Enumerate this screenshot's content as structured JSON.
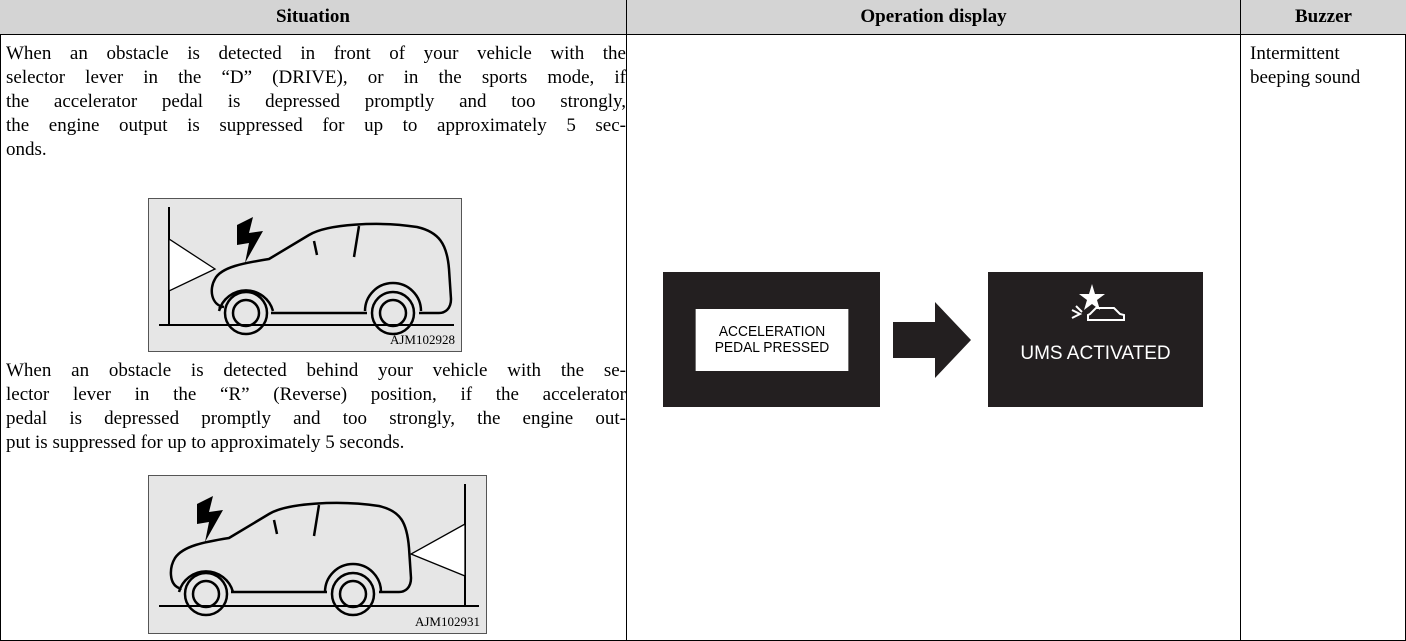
{
  "table": {
    "header": [
      "Situation",
      "Operation display",
      "Buzzer"
    ],
    "situation": {
      "paragraphs": [
        [
          "When an obstacle is detected in front of your vehicle with the",
          "selector lever in the “D” (DRIVE), or in the sports mode, if",
          "the accelerator pedal is depressed promptly and too strongly,",
          "the engine output is suppressed for up to approximately 5 sec-",
          "onds."
        ],
        [
          "When an obstacle is detected behind your vehicle with the se-",
          "lector lever in the “R” (Reverse) position, if the accelerator",
          "pedal is depressed promptly and too strongly, the engine out-",
          "put is suppressed for up to approximately 5 seconds."
        ]
      ],
      "figures": [
        "AJM102928",
        "AJM102931"
      ]
    },
    "display": {
      "screens": [
        [
          "ACCELERATION",
          "PEDAL PRESSED"
        ],
        [
          "UMS ACTIVATED"
        ]
      ]
    },
    "buzzer": [
      "Intermittent",
      "beeping sound"
    ]
  }
}
